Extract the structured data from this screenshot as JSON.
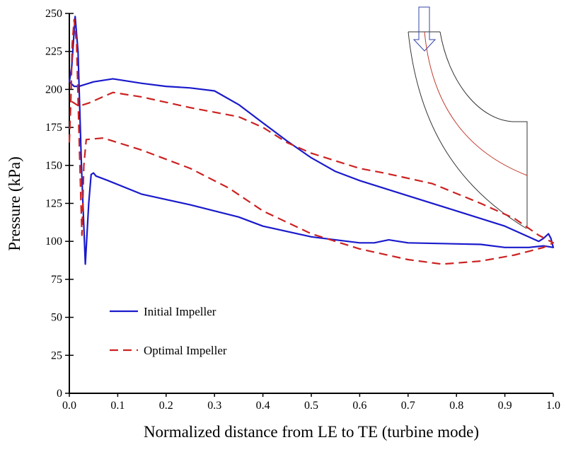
{
  "chart_data": {
    "type": "line",
    "title": "",
    "xlabel": "Normalized distance from LE to TE (turbine mode)",
    "ylabel": "Pressure (kPa)",
    "xlim": [
      0,
      1.0
    ],
    "ylim": [
      0,
      250
    ],
    "xticks": [
      "0.0",
      "0.1",
      "0.2",
      "0.3",
      "0.4",
      "0.5",
      "0.6",
      "0.7",
      "0.8",
      "0.9",
      "1.0"
    ],
    "yticks": [
      "0",
      "25",
      "50",
      "75",
      "100",
      "125",
      "150",
      "175",
      "200",
      "225",
      "250"
    ],
    "grid": false,
    "legend_placement": "bottom-left",
    "series": [
      {
        "name": "Initial Impeller",
        "color": "#1a1acc",
        "style": "solid",
        "points": [
          [
            0,
            205
          ],
          [
            0.005,
            215
          ],
          [
            0.012,
            248
          ],
          [
            0.018,
            225
          ],
          [
            0.025,
            150
          ],
          [
            0.033,
            85
          ],
          [
            0.04,
            125
          ],
          [
            0.045,
            144
          ],
          [
            0.05,
            145
          ],
          [
            0.055,
            143
          ],
          [
            0.08,
            140
          ],
          [
            0.15,
            131
          ],
          [
            0.25,
            124
          ],
          [
            0.35,
            116
          ],
          [
            0.4,
            110
          ],
          [
            0.5,
            103
          ],
          [
            0.6,
            99
          ],
          [
            0.63,
            99
          ],
          [
            0.66,
            101
          ],
          [
            0.7,
            99
          ],
          [
            0.85,
            98
          ],
          [
            0.9,
            96
          ],
          [
            0.95,
            96
          ],
          [
            0.98,
            97
          ],
          [
            1.0,
            96
          ],
          [
            0.995,
            102
          ],
          [
            0.99,
            105
          ],
          [
            0.98,
            102
          ],
          [
            0.97,
            100
          ],
          [
            0.9,
            110
          ],
          [
            0.8,
            120
          ],
          [
            0.7,
            130
          ],
          [
            0.6,
            140
          ],
          [
            0.55,
            146
          ],
          [
            0.5,
            155
          ],
          [
            0.45,
            166
          ],
          [
            0.4,
            178
          ],
          [
            0.35,
            190
          ],
          [
            0.3,
            199
          ],
          [
            0.25,
            201
          ],
          [
            0.2,
            202
          ],
          [
            0.15,
            204
          ],
          [
            0.09,
            207
          ],
          [
            0.05,
            205
          ],
          [
            0.02,
            202
          ],
          [
            0.01,
            202
          ],
          [
            0,
            205
          ]
        ]
      },
      {
        "name": "Optimal Impeller",
        "color": "#cc2222",
        "style": "dashed",
        "points": [
          [
            0,
            165
          ],
          [
            0.003,
            192
          ],
          [
            0.006,
            230
          ],
          [
            0.01,
            246
          ],
          [
            0.015,
            230
          ],
          [
            0.02,
            170
          ],
          [
            0.026,
            104
          ],
          [
            0.03,
            150
          ],
          [
            0.035,
            167
          ],
          [
            0.07,
            168
          ],
          [
            0.15,
            160
          ],
          [
            0.25,
            148
          ],
          [
            0.33,
            135
          ],
          [
            0.4,
            120
          ],
          [
            0.5,
            105
          ],
          [
            0.6,
            95
          ],
          [
            0.7,
            88
          ],
          [
            0.77,
            85
          ],
          [
            0.85,
            87
          ],
          [
            0.92,
            91
          ],
          [
            0.98,
            96
          ],
          [
            1.0,
            99
          ],
          [
            0.97,
            104
          ],
          [
            0.92,
            115
          ],
          [
            0.85,
            125
          ],
          [
            0.75,
            138
          ],
          [
            0.65,
            145
          ],
          [
            0.6,
            148
          ],
          [
            0.5,
            158
          ],
          [
            0.45,
            165
          ],
          [
            0.4,
            175
          ],
          [
            0.35,
            182
          ],
          [
            0.25,
            188
          ],
          [
            0.15,
            195
          ],
          [
            0.09,
            198
          ],
          [
            0.04,
            191
          ],
          [
            0.02,
            189
          ],
          [
            0.005,
            192
          ]
        ]
      }
    ]
  }
}
